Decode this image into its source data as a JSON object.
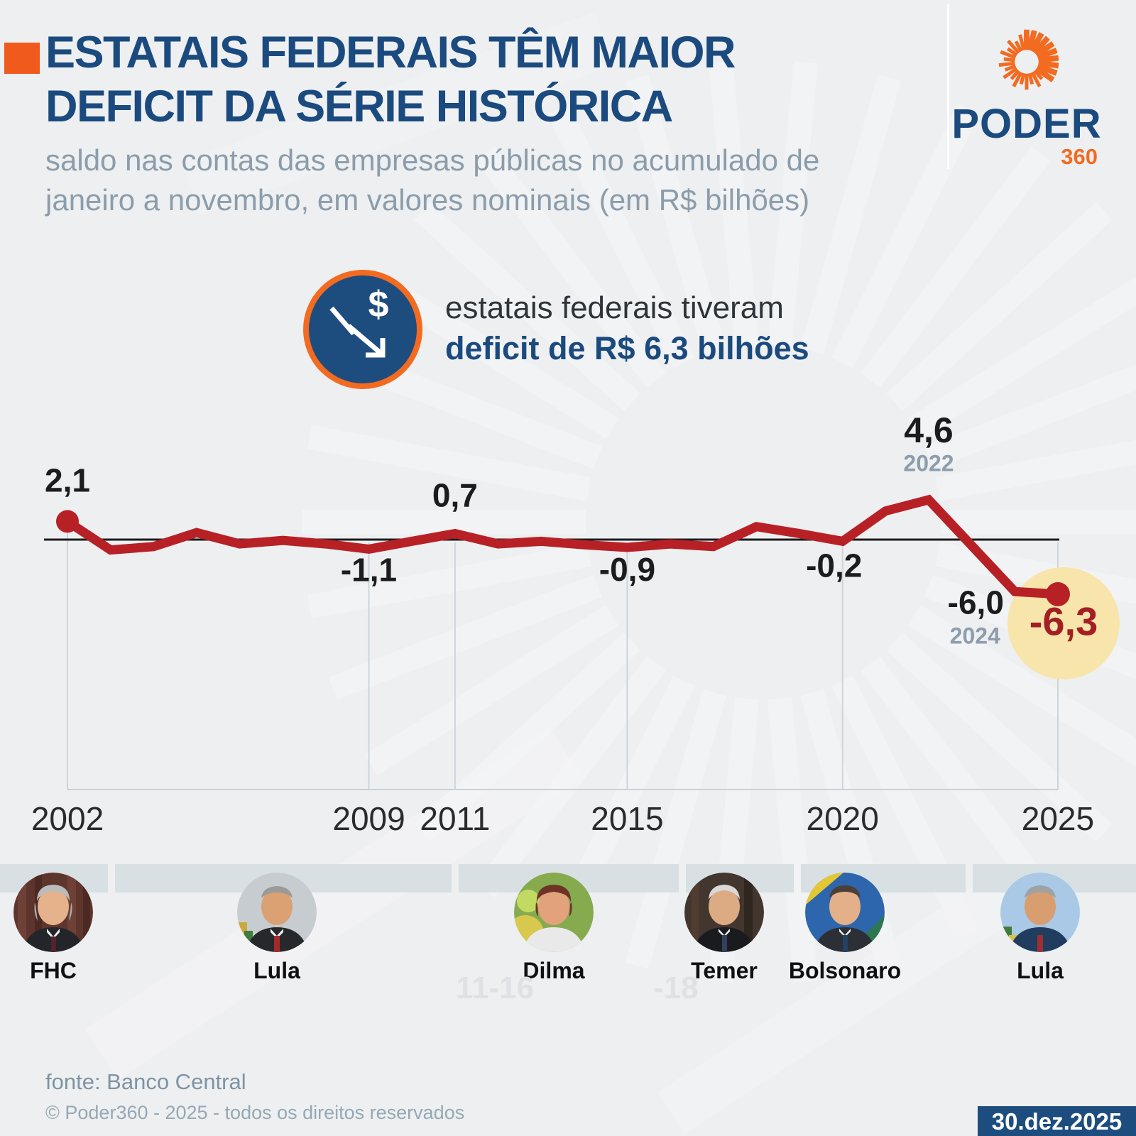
{
  "header": {
    "title_line1": "ESTATAIS FEDERAIS TÊM MAIOR",
    "title_line2": "DEFICIT DA SÉRIE HISTÓRICA",
    "subtitle_line1": "saldo nas contas das empresas públicas no acumulado de",
    "subtitle_line2": "janeiro a novembro, em valores nominais (em R$ bilhões)",
    "accent_color": "#f05a1d"
  },
  "logo": {
    "brand": "PODER",
    "suffix": "360",
    "icon": "sunburst-icon",
    "orange": "#f26b21",
    "blue": "#1b4a7e"
  },
  "callout": {
    "icon": "dollar-decline-icon",
    "line1": "estatais federais tiveram",
    "line2": "deficit de R$ 6,3 bilhões"
  },
  "chart_data": {
    "type": "line",
    "unit": "R$ bilhões",
    "x": [
      2002,
      2003,
      2004,
      2005,
      2006,
      2007,
      2008,
      2009,
      2010,
      2011,
      2012,
      2013,
      2014,
      2015,
      2016,
      2017,
      2018,
      2019,
      2020,
      2021,
      2022,
      2023,
      2024,
      2025
    ],
    "values": [
      2.1,
      -1.2,
      -0.8,
      0.8,
      -0.5,
      -0.1,
      -0.5,
      -1.1,
      -0.2,
      0.7,
      -0.5,
      -0.2,
      -0.6,
      -0.9,
      -0.5,
      -0.8,
      1.5,
      0.7,
      -0.2,
      3.3,
      4.6,
      -0.7,
      -6.0,
      -6.3
    ],
    "x_ticks": [
      2002,
      2009,
      2011,
      2015,
      2020,
      2025
    ],
    "labeled_points": [
      {
        "year": 2002,
        "label": "2,1"
      },
      {
        "year": 2009,
        "label": "-1,1"
      },
      {
        "year": 2011,
        "label": "0,7"
      },
      {
        "year": 2015,
        "label": "-0,9"
      },
      {
        "year": 2020,
        "label": "-0,2"
      },
      {
        "year": 2022,
        "label": "4,6",
        "sub_label": "2022"
      },
      {
        "year": 2024,
        "label": "-6,0",
        "sub_label": "2024"
      },
      {
        "year": 2025,
        "label": "-6,3",
        "highlight": true
      }
    ],
    "xlim": [
      2002,
      2025
    ],
    "ylim": [
      -7.5,
      6
    ],
    "zero_baseline": true,
    "grid": "vertical-ticks-only",
    "legend": "none",
    "line_color": "#b72126",
    "highlight_fill": "#f8e5ab",
    "highlight_label_color": "#a31f24",
    "sub_label_color": "#8d9dac"
  },
  "presidents": [
    {
      "name": "FHC",
      "art": "fhc"
    },
    {
      "name": "Lula",
      "art": "lula"
    },
    {
      "name": "Dilma",
      "art": "dilma",
      "faint_term": "11-16"
    },
    {
      "name": "Temer",
      "art": "temer",
      "faint_term": "-18"
    },
    {
      "name": "Bolsonaro",
      "art": "bolsonaro"
    },
    {
      "name": "Lula",
      "art": "lula2"
    }
  ],
  "footer": {
    "source": "fonte: Banco Central",
    "copyright": "© Poder360 - 2025 - todos os direitos reservados",
    "date_badge": "30.dez.2025"
  }
}
